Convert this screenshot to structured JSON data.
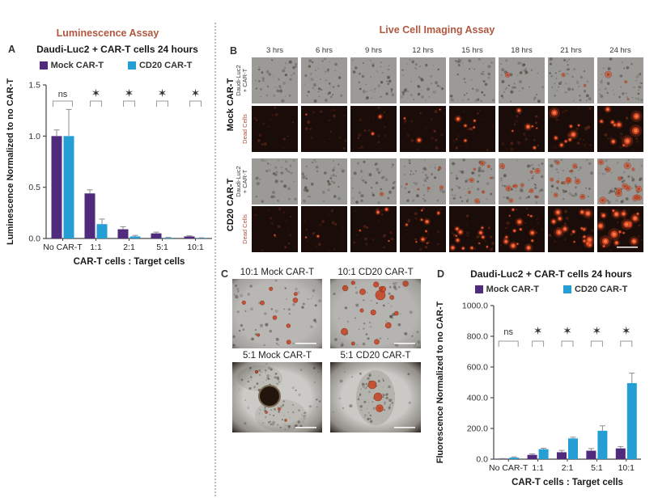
{
  "colors": {
    "mock_purple": "#4f2a7d",
    "cd20_blue": "#249ed3",
    "assay_title": "#b0573f",
    "dead_label_red": "#b0523a",
    "axis": "#474747",
    "error_bar": "#8c8c8c",
    "sig_bracket": "#9a9a9a"
  },
  "chart_data": [
    {
      "id": "A",
      "type": "bar",
      "title": "Daudi-Luc2 + CAR-T cells 24 hours",
      "categories": [
        "No CAR-T",
        "1:1",
        "2:1",
        "5:1",
        "10:1"
      ],
      "series": [
        {
          "name": "Mock CAR-T",
          "color": "#4f2a7d",
          "values": [
            1.0,
            0.44,
            0.09,
            0.05,
            0.02
          ],
          "errors": [
            0.06,
            0.035,
            0.025,
            0.012,
            0.006
          ]
        },
        {
          "name": "CD20 CAR-T",
          "color": "#249ed3",
          "values": [
            1.0,
            0.14,
            0.02,
            0.006,
            0.004
          ],
          "errors": [
            0.26,
            0.05,
            0.01,
            0.005,
            0.003
          ]
        }
      ],
      "ylabel": "Luminescence Normalized to no CAR-T",
      "xlabel": "CAR-T cells : Target cells",
      "ylim": [
        0,
        1.5
      ],
      "yticks": [
        0,
        0.5,
        1.0,
        1.5
      ],
      "ytick_labels": [
        "0.0",
        "0.5",
        "1.0",
        "1.5"
      ],
      "significance": [
        "ns",
        "*",
        "*",
        "*",
        "*"
      ],
      "legend_position": "top",
      "grid": false
    },
    {
      "id": "D",
      "type": "bar",
      "title": "Daudi-Luc2 + CAR-T cells 24 hours",
      "categories": [
        "No CAR-T",
        "1:1",
        "2:1",
        "5:1",
        "10:1"
      ],
      "series": [
        {
          "name": "Mock CAR-T",
          "color": "#4f2a7d",
          "values": [
            2,
            28,
            45,
            55,
            70
          ],
          "errors": [
            2,
            6,
            12,
            14,
            12
          ]
        },
        {
          "name": "CD20 CAR-T",
          "color": "#249ed3",
          "values": [
            10,
            65,
            135,
            185,
            495
          ],
          "errors": [
            5,
            6,
            8,
            32,
            65
          ]
        }
      ],
      "ylabel": "Fluorescence Normalized to no CAR-T",
      "xlabel": "CAR-T cells : Target cells",
      "ylim": [
        0,
        1000
      ],
      "yticks": [
        0,
        200,
        400,
        600,
        800,
        1000
      ],
      "ytick_labels": [
        "0.0",
        "200.0",
        "400.0",
        "600.0",
        "800.0",
        "1000.0"
      ],
      "significance": [
        "ns",
        "*",
        "*",
        "*",
        "*"
      ],
      "legend_position": "top",
      "grid": false
    }
  ],
  "figure": {
    "panel_a": {
      "label": "A",
      "assay_title": "Luminescence Assay",
      "chart_title": "Daudi-Luc2 + CAR-T cells 24 hours"
    },
    "panel_b": {
      "label": "B",
      "title": "Live Cell Imaging Assay",
      "timepoints": [
        "3 hrs",
        "6 hrs",
        "9 hrs",
        "12 hrs",
        "15 hrs",
        "18 hrs",
        "21 hrs",
        "24 hrs"
      ],
      "groups": [
        {
          "name": "Mock CAR-T",
          "rows": [
            {
              "label_lines": [
                "Daudi-Luc2",
                "+ CAR-T"
              ],
              "type": "phase",
              "red_counts": [
                0,
                0,
                0,
                0,
                0,
                1,
                2,
                3
              ]
            },
            {
              "label_lines": [
                "Dead Cells"
              ],
              "type": "dead",
              "red_counts": [
                0,
                1,
                2,
                3,
                5,
                6,
                8,
                10
              ]
            }
          ]
        },
        {
          "name": "CD20 CAR-T",
          "rows": [
            {
              "label_lines": [
                "Daudi-Luc2",
                "+ CAR-T"
              ],
              "type": "phase",
              "red_counts": [
                0,
                0,
                1,
                5,
                8,
                10,
                12,
                14
              ]
            },
            {
              "label_lines": [
                "Dead Cells"
              ],
              "type": "dead",
              "red_counts": [
                1,
                2,
                4,
                9,
                12,
                14,
                16,
                17
              ]
            }
          ]
        }
      ]
    },
    "panel_c": {
      "label": "C",
      "images": [
        {
          "title": "10:1 Mock CAR-T"
        },
        {
          "title": "10:1 CD20 CAR-T"
        },
        {
          "title": "5:1 Mock CAR-T"
        },
        {
          "title": "5:1 CD20 CAR-T"
        }
      ]
    },
    "panel_d": {
      "label": "D",
      "chart_title": "Daudi-Luc2 + CAR-T cells 24 hours"
    }
  }
}
